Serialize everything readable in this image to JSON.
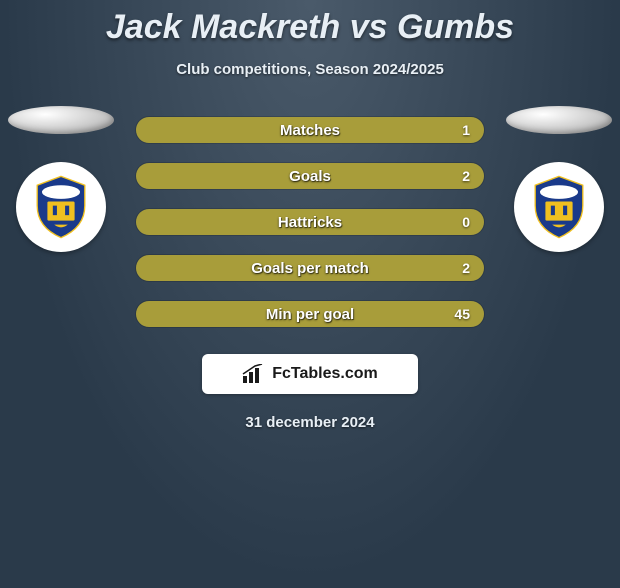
{
  "title": "Jack Mackreth vs Gumbs",
  "subtitle": "Club competitions, Season 2024/2025",
  "date": "31 december 2024",
  "source": "FcTables.com",
  "colors": {
    "bar_left": "#a89d3a",
    "bar_right": "#a89d3a",
    "shield_primary": "#1a3a8a",
    "shield_accent": "#f0c020",
    "background_start": "#4a5a6a",
    "background_end": "#2a3a4a",
    "text": "#e8eff5"
  },
  "stats": [
    {
      "label": "Matches",
      "left_value": "",
      "right_value": "1",
      "left_pct": 5,
      "right_pct": 95
    },
    {
      "label": "Goals",
      "left_value": "",
      "right_value": "2",
      "left_pct": 5,
      "right_pct": 95
    },
    {
      "label": "Hattricks",
      "left_value": "",
      "right_value": "0",
      "left_pct": 5,
      "right_pct": 95
    },
    {
      "label": "Goals per match",
      "left_value": "",
      "right_value": "2",
      "left_pct": 5,
      "right_pct": 95
    },
    {
      "label": "Min per goal",
      "left_value": "",
      "right_value": "45",
      "left_pct": 5,
      "right_pct": 95
    }
  ]
}
